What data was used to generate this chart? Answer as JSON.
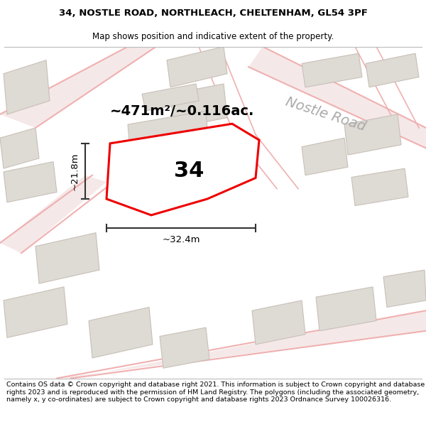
{
  "title_line1": "34, NOSTLE ROAD, NORTHLEACH, CHELTENHAM, GL54 3PF",
  "title_line2": "Map shows position and indicative extent of the property.",
  "footer_text": "Contains OS data © Crown copyright and database right 2021. This information is subject to Crown copyright and database rights 2023 and is reproduced with the permission of HM Land Registry. The polygons (including the associated geometry, namely x, y co-ordinates) are subject to Crown copyright and database rights 2023 Ordnance Survey 100026316.",
  "area_label": "~471m²/~0.116ac.",
  "number_label": "34",
  "width_label": "~32.4m",
  "height_label": "~21.8m",
  "road_label": "Nostle Road",
  "map_bg": "#f2f0ed",
  "plot_color": "#ee0000",
  "road_line_color": "#f0b0b0",
  "road_fill_color": "#f5e8e8",
  "building_color": "#dedad4",
  "building_edge": "#c8c0b8",
  "dim_color": "#333333",
  "title_fontsize": 9.5,
  "subtitle_fontsize": 8.5,
  "footer_fontsize": 6.8,
  "area_fontsize": 14,
  "number_fontsize": 22,
  "road_label_fontsize": 14
}
